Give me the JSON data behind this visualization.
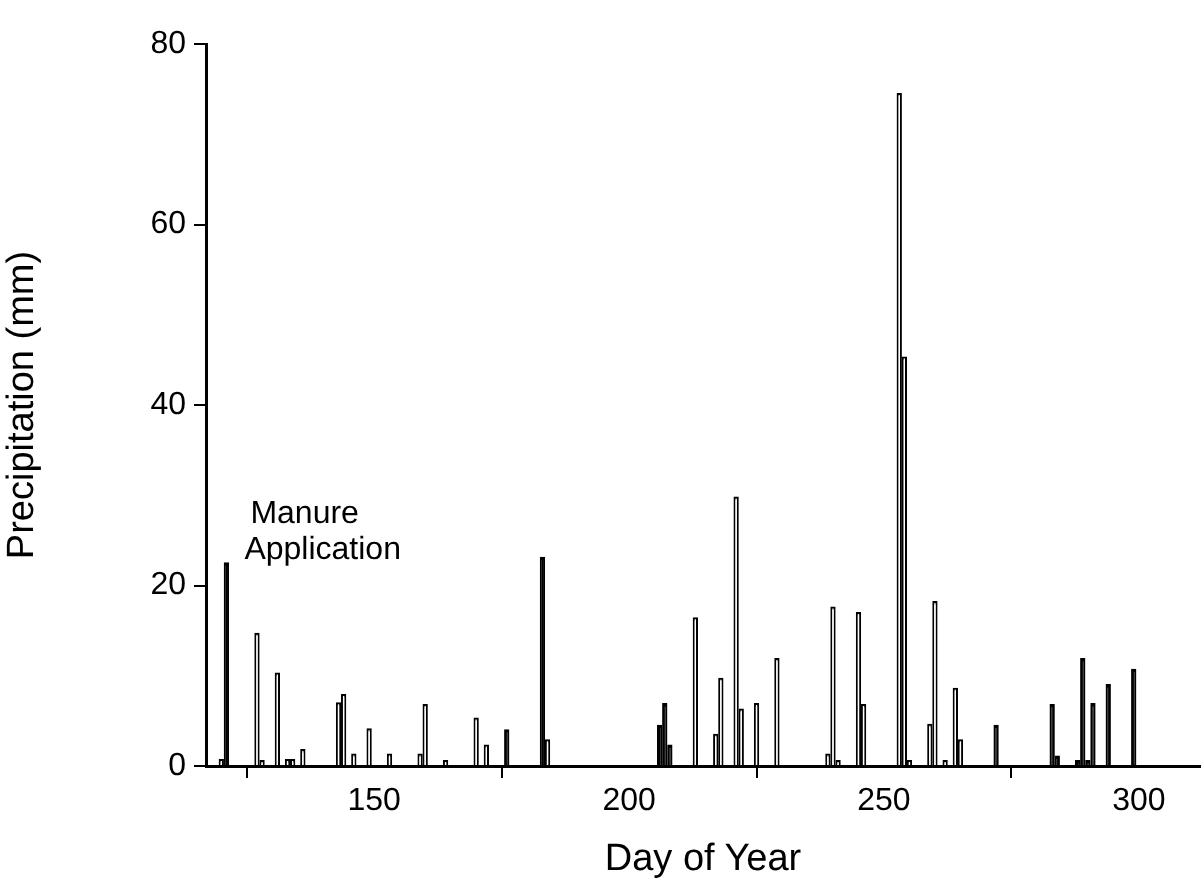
{
  "chart_data": {
    "type": "bar",
    "xlabel": "Day of Year",
    "ylabel": "Precipitation (mm)",
    "x": [
      120,
      121,
      127,
      128,
      131,
      133,
      134,
      136,
      143,
      144,
      146,
      149,
      153,
      159,
      160,
      164,
      170,
      172,
      176,
      183,
      184,
      206,
      207,
      208,
      213,
      217,
      218,
      221,
      222,
      225,
      229,
      239,
      240,
      241,
      245,
      246,
      253,
      254,
      255,
      259,
      260,
      262,
      264,
      265,
      272,
      283,
      284,
      288,
      289,
      290,
      291,
      294,
      299
    ],
    "values": [
      0.7,
      22.5,
      14.7,
      0.6,
      10.3,
      0.7,
      0.7,
      1.8,
      7.0,
      7.9,
      1.3,
      4.1,
      1.3,
      1.3,
      6.8,
      0.6,
      5.3,
      2.3,
      4.0,
      23.1,
      2.9,
      4.5,
      6.9,
      2.3,
      16.4,
      3.5,
      9.7,
      29.8,
      6.3,
      6.9,
      11.9,
      1.3,
      17.6,
      0.6,
      17.0,
      6.8,
      74.5,
      45.3,
      0.6,
      4.6,
      18.2,
      0.6,
      8.6,
      2.9,
      4.5,
      6.8,
      1.1,
      0.6,
      11.9,
      0.6,
      6.9,
      9.0,
      10.7
    ],
    "colors": [
      "#ffffff",
      "#000000",
      "#ffffff",
      "#ffffff",
      "#ffffff",
      "#ffffff",
      "#ffffff",
      "#ffffff",
      "#ffffff",
      "#ffffff",
      "#ffffff",
      "#ffffff",
      "#ffffff",
      "#ffffff",
      "#ffffff",
      "#ffffff",
      "#ffffff",
      "#ffffff",
      "#000000",
      "#000000",
      "#ffffff",
      "#000000",
      "#000000",
      "#000000",
      "#ffffff",
      "#ffffff",
      "#ffffff",
      "#ffffff",
      "#ffffff",
      "#ffffff",
      "#ffffff",
      "#ffffff",
      "#ffffff",
      "#ffffff",
      "#ffffff",
      "#ffffff",
      "#ffffff",
      "#ffffff",
      "#ffffff",
      "#ffffff",
      "#ffffff",
      "#ffffff",
      "#ffffff",
      "#ffffff",
      "#000000",
      "#000000",
      "#000000",
      "#000000",
      "#000000",
      "#000000",
      "#000000",
      "#000000",
      "#000000"
    ],
    "xlim": [
      117,
      312
    ],
    "xticks": [
      150,
      200,
      250,
      300
    ],
    "ylim": [
      0,
      80
    ],
    "yticks": [
      0,
      20,
      40,
      60,
      80
    ],
    "grid": false,
    "legend": false,
    "annotations": [
      {
        "text": "Manure Application",
        "x": 121,
        "y": 22.5
      }
    ]
  }
}
